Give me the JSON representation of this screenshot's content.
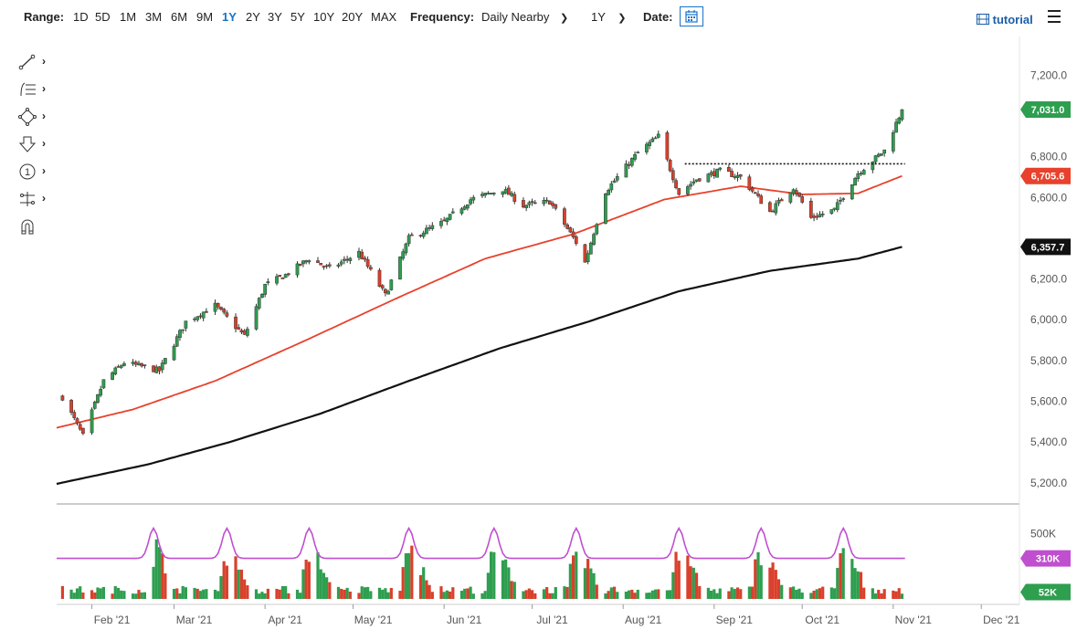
{
  "toolbar": {
    "range_label": "Range:",
    "ranges": [
      "1D",
      "5D",
      "1M",
      "3M",
      "6M",
      "9M",
      "1Y",
      "2Y",
      "3Y",
      "5Y",
      "10Y",
      "20Y",
      "MAX"
    ],
    "active_range": "1Y",
    "frequency_label": "Frequency:",
    "frequency_value": "Daily Nearby",
    "period_value": "1Y",
    "date_label": "Date:",
    "tutorial_label": "tutorial"
  },
  "tools": {
    "icons": [
      "line-draw-icon",
      "fibonacci-icon",
      "shape-icon",
      "arrow-down-icon",
      "number-marker-icon",
      "measure-icon",
      "magnet-icon"
    ]
  },
  "colors": {
    "up": "#2e9e4f",
    "down": "#d9402b",
    "ma_short": "#e8412c",
    "ma_long": "#111111",
    "volume_ma": "#c04fd0",
    "accent": "#1a73c9"
  },
  "chart_data": {
    "type": "candlestick",
    "price_axis": {
      "range": [
        5150,
        7300
      ],
      "ticks": [
        "7,200.0",
        "6,800.0",
        "6,600.0",
        "6,200.0",
        "6,000.0",
        "5,800.0",
        "5,600.0",
        "5,400.0",
        "5,200.0"
      ],
      "tick_values": [
        7200,
        6800,
        6600,
        6200,
        6000,
        5800,
        5600,
        5400,
        5200
      ]
    },
    "x_axis": {
      "range": [
        "2021-01-20",
        "2021-12-14"
      ],
      "labels": [
        "Feb '21",
        "Mar '21",
        "Apr '21",
        "May '21",
        "Jun '21",
        "Jul '21",
        "Aug '21",
        "Sep '21",
        "Oct '21",
        "Nov '21",
        "Dec '21"
      ],
      "label_dates": [
        "2021-02-01",
        "2021-03-01",
        "2021-04-01",
        "2021-05-01",
        "2021-06-01",
        "2021-07-01",
        "2021-08-01",
        "2021-09-01",
        "2021-10-01",
        "2021-11-01",
        "2021-12-01"
      ]
    },
    "price_keypoints": {
      "dates": [
        "2021-01-22",
        "2021-01-29",
        "2021-02-05",
        "2021-02-12",
        "2021-02-24",
        "2021-03-05",
        "2021-03-15",
        "2021-03-25",
        "2021-04-01",
        "2021-04-08",
        "2021-04-16",
        "2021-04-23",
        "2021-05-03",
        "2021-05-12",
        "2021-05-20",
        "2021-06-01",
        "2021-06-10",
        "2021-06-21",
        "2021-06-28",
        "2021-07-07",
        "2021-07-16",
        "2021-07-19",
        "2021-07-26",
        "2021-08-06",
        "2021-08-13",
        "2021-08-20",
        "2021-08-26",
        "2021-09-03",
        "2021-09-10",
        "2021-09-20",
        "2021-09-28",
        "2021-10-04",
        "2021-10-12",
        "2021-10-20",
        "2021-10-29",
        "2021-11-04"
      ],
      "closes": [
        5620,
        5430,
        5700,
        5790,
        5750,
        5990,
        6070,
        5920,
        6170,
        6220,
        6300,
        6250,
        6330,
        6120,
        6400,
        6480,
        6590,
        6640,
        6560,
        6580,
        6380,
        6280,
        6630,
        6820,
        6900,
        6620,
        6690,
        6730,
        6700,
        6530,
        6650,
        6500,
        6540,
        6720,
        6830,
        7031
      ]
    },
    "moving_average_50": {
      "dates": [
        "2021-01-20",
        "2021-02-15",
        "2021-03-15",
        "2021-04-15",
        "2021-05-15",
        "2021-06-15",
        "2021-07-15",
        "2021-08-15",
        "2021-09-10",
        "2021-10-01",
        "2021-10-20",
        "2021-11-04"
      ],
      "values": [
        5470,
        5560,
        5700,
        5900,
        6100,
        6300,
        6420,
        6590,
        6655,
        6615,
        6620,
        6705.6
      ]
    },
    "moving_average_200": {
      "dates": [
        "2021-01-20",
        "2021-02-20",
        "2021-03-20",
        "2021-04-20",
        "2021-05-20",
        "2021-06-20",
        "2021-07-20",
        "2021-08-20",
        "2021-09-20",
        "2021-10-20",
        "2021-11-04"
      ],
      "values": [
        5195,
        5290,
        5400,
        5540,
        5700,
        5860,
        5990,
        6140,
        6240,
        6300,
        6357.7
      ]
    },
    "resistance_level": {
      "value": 6765,
      "start": "2021-08-22",
      "end": "2021-11-05"
    },
    "price_tags": [
      {
        "name": "last-price",
        "value": 7031.0,
        "label": "7,031.0",
        "color": "#2e9e4f"
      },
      {
        "name": "ma-50",
        "value": 6705.6,
        "label": "6,705.6",
        "color": "#e8412c"
      },
      {
        "name": "ma-200",
        "value": 6357.7,
        "label": "6,357.7",
        "color": "#111111"
      }
    ],
    "volume_axis": {
      "ticks": [
        "500K"
      ],
      "tags": [
        {
          "name": "volume-ma",
          "value": 310,
          "label": "310K",
          "color": "#c04fd0"
        },
        {
          "name": "volume-last",
          "value": 52,
          "label": "52K",
          "color": "#2e9e4f"
        }
      ],
      "spike_dates": [
        "2021-02-22",
        "2021-03-19",
        "2021-04-16",
        "2021-05-20",
        "2021-06-18",
        "2021-07-16",
        "2021-08-20",
        "2021-09-17",
        "2021-10-15"
      ],
      "baseline": 310,
      "spike_peak": 540
    }
  }
}
